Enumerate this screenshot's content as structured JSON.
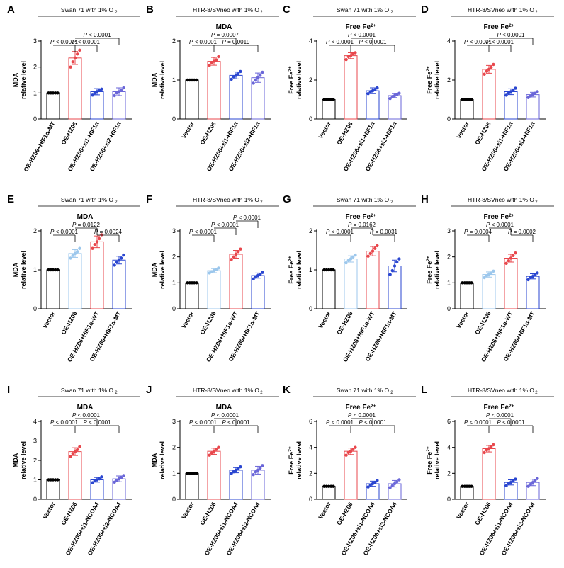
{
  "figure": {
    "panels_label": "12-panel bar chart figure"
  },
  "chart_data": [
    {
      "panel": "A",
      "type": "bar",
      "header": "Swan 71 with 1% O",
      "header_sub": "2",
      "title": "",
      "title_sup": "",
      "ylabel_1": "MDA",
      "ylabel_2": "relative level",
      "ylim": [
        0,
        3
      ],
      "yticks": [
        0,
        1,
        2,
        3
      ],
      "categories": [
        "OE-HZ06+HIF1α-MT",
        "OE-HZ06",
        "OE-HZ06+si1-HIF1α",
        "OE-HZ06+si2-HIF1α"
      ],
      "colors": [
        "#000000",
        "#e8474c",
        "#2a46d0",
        "#6a66d8"
      ],
      "values": [
        1.0,
        2.35,
        1.05,
        1.05
      ],
      "errors": [
        0.0,
        0.25,
        0.12,
        0.15
      ],
      "points": [
        [
          1,
          1,
          1,
          1,
          1
        ],
        [
          2.0,
          2.2,
          2.35,
          2.5,
          2.65
        ],
        [
          0.92,
          1.0,
          1.05,
          1.1,
          1.15
        ],
        [
          0.9,
          1.0,
          1.05,
          1.1,
          1.2
        ]
      ],
      "comparisons": [
        {
          "from": 0,
          "to": 1,
          "label": "P < 0.0001",
          "level": 0
        },
        {
          "from": 1,
          "to": 2,
          "label": "P < 0.0001",
          "level": 0
        },
        {
          "from": 1,
          "to": 3,
          "label": "P < 0.0001",
          "level": 1
        }
      ]
    },
    {
      "panel": "B",
      "type": "bar",
      "header": "HTR-8/SVneo with 1% O",
      "header_sub": "2",
      "title": "MDA",
      "title_sup": "",
      "ylabel_1": "MDA",
      "ylabel_2": "relative level",
      "ylim": [
        0,
        2
      ],
      "yticks": [
        0,
        1,
        2
      ],
      "categories": [
        "Vector",
        "OE-HZ06",
        "OE-HZ06+si1-HIF1α",
        "OE-HZ06+si2-HIF1α"
      ],
      "colors": [
        "#000000",
        "#e8474c",
        "#2a46d0",
        "#6a66d8"
      ],
      "values": [
        1.0,
        1.48,
        1.12,
        1.06
      ],
      "errors": [
        0.0,
        0.1,
        0.09,
        0.12
      ],
      "points": [
        [
          1,
          1,
          1,
          1,
          1
        ],
        [
          1.38,
          1.45,
          1.48,
          1.52,
          1.6
        ],
        [
          1.02,
          1.08,
          1.12,
          1.16,
          1.22
        ],
        [
          0.92,
          1.0,
          1.06,
          1.12,
          1.2
        ]
      ],
      "comparisons": [
        {
          "from": 0,
          "to": 1,
          "label": "P < 0.0001",
          "level": 0
        },
        {
          "from": 1,
          "to": 3,
          "label": "P = 0.0019",
          "level": 0
        },
        {
          "from": 1,
          "to": 2,
          "label": "P = 0.0007",
          "level": 1
        }
      ]
    },
    {
      "panel": "C",
      "type": "bar",
      "header": "Swan 71 with 1% O",
      "header_sub": "2",
      "title": "Free Fe",
      "title_sup": "2+",
      "ylabel_1": "Free Fe",
      "ylabel_1_sup": "2+",
      "ylabel_2": "relative level",
      "ylim": [
        0,
        4
      ],
      "yticks": [
        0,
        2,
        4
      ],
      "categories": [
        "Vector",
        "OE-HZ06",
        "OE-HZ06+si1-HIF1α",
        "OE-HZ06+si2-HIF1α"
      ],
      "colors": [
        "#000000",
        "#e8474c",
        "#2a46d0",
        "#6a66d8"
      ],
      "values": [
        1.0,
        3.25,
        1.45,
        1.2
      ],
      "errors": [
        0.0,
        0.15,
        0.15,
        0.1
      ],
      "points": [
        [
          1,
          1,
          1,
          1,
          1
        ],
        [
          3.05,
          3.2,
          3.25,
          3.35,
          3.4
        ],
        [
          1.3,
          1.4,
          1.45,
          1.5,
          1.6
        ],
        [
          1.05,
          1.15,
          1.2,
          1.25,
          1.32
        ]
      ],
      "comparisons": [
        {
          "from": 0,
          "to": 1,
          "label": "P < 0.0001",
          "level": 0
        },
        {
          "from": 1,
          "to": 3,
          "label": "P < 0.0001",
          "level": 0
        },
        {
          "from": 1,
          "to": 2,
          "label": "P < 0.0001",
          "level": 1
        }
      ]
    },
    {
      "panel": "D",
      "type": "bar",
      "header": "HTR-8/SVneo with 1% O",
      "header_sub": "2",
      "title": "Free Fe",
      "title_sup": "2+",
      "ylabel_1": "Free Fe",
      "ylabel_1_sup": "2+",
      "ylabel_2": "relative level",
      "ylim": [
        0,
        4
      ],
      "yticks": [
        0,
        2,
        4
      ],
      "categories": [
        "Vector",
        "OE-HZ06",
        "OE-HZ06+si1-HIF1α",
        "OE-HZ06+si2-HIF1α"
      ],
      "colors": [
        "#000000",
        "#e8474c",
        "#2a46d0",
        "#6a66d8"
      ],
      "values": [
        1.0,
        2.55,
        1.4,
        1.25
      ],
      "errors": [
        0.0,
        0.2,
        0.15,
        0.12
      ],
      "points": [
        [
          1,
          1,
          1,
          1,
          1
        ],
        [
          2.3,
          2.45,
          2.55,
          2.65,
          2.8
        ],
        [
          1.22,
          1.32,
          1.4,
          1.48,
          1.58
        ],
        [
          1.1,
          1.18,
          1.25,
          1.32,
          1.4
        ]
      ],
      "comparisons": [
        {
          "from": 0,
          "to": 1,
          "label": "P < 0.0001",
          "level": 0
        },
        {
          "from": 1,
          "to": 2,
          "label": "P < 0.0001",
          "level": 0
        },
        {
          "from": 1,
          "to": 3,
          "label": "P < 0.0001",
          "level": 1
        }
      ]
    },
    {
      "panel": "E",
      "type": "bar",
      "header": "Swan 71 with 1% O",
      "header_sub": "2",
      "title": "MDA",
      "title_sup": "",
      "ylabel_1": "MDA",
      "ylabel_2": "relative level",
      "ylim": [
        0,
        2
      ],
      "yticks": [
        0,
        1,
        2
      ],
      "categories": [
        "Vector",
        "OE-HZ06",
        "OE-HZ06+HIF1α-WT",
        "OE-HZ06+HIF1α-MT"
      ],
      "colors": [
        "#000000",
        "#9cc7ec",
        "#e8474c",
        "#2a46d0"
      ],
      "values": [
        1.0,
        1.42,
        1.72,
        1.25
      ],
      "errors": [
        0.0,
        0.1,
        0.15,
        0.1
      ],
      "points": [
        [
          1,
          1,
          1,
          1,
          1
        ],
        [
          1.3,
          1.37,
          1.42,
          1.47,
          1.55
        ],
        [
          1.55,
          1.65,
          1.72,
          1.8,
          1.9
        ],
        [
          1.12,
          1.2,
          1.25,
          1.3,
          1.38
        ]
      ],
      "comparisons": [
        {
          "from": 0,
          "to": 1,
          "label": "P < 0.0001",
          "level": 0
        },
        {
          "from": 2,
          "to": 3,
          "label": "P = 0.0024",
          "level": 0
        },
        {
          "from": 1,
          "to": 2,
          "label": "P = 0.0122",
          "level": 1
        }
      ]
    },
    {
      "panel": "F",
      "type": "bar",
      "header": "HTR-8/SVneo with 1% O",
      "header_sub": "2",
      "title": "",
      "title_sup": "",
      "ylabel_1": "MDA",
      "ylabel_2": "relative level",
      "ylim": [
        0,
        3
      ],
      "yticks": [
        0,
        1,
        2,
        3
      ],
      "categories": [
        "Vector",
        "OE-HZ06",
        "OE-HZ06+HIF1α-WT",
        "OE-HZ06+HIF1α-MT"
      ],
      "colors": [
        "#000000",
        "#9cc7ec",
        "#e8474c",
        "#2a46d0"
      ],
      "values": [
        1.0,
        1.47,
        2.1,
        1.28
      ],
      "errors": [
        0.0,
        0.08,
        0.15,
        0.1
      ],
      "points": [
        [
          1,
          1,
          1,
          1,
          1
        ],
        [
          1.38,
          1.43,
          1.47,
          1.52,
          1.57
        ],
        [
          1.9,
          2.0,
          2.1,
          2.2,
          2.3
        ],
        [
          1.15,
          1.22,
          1.28,
          1.33,
          1.4
        ]
      ],
      "comparisons": [
        {
          "from": 0,
          "to": 1,
          "label": "P < 0.0001",
          "level": 0
        },
        {
          "from": 1,
          "to": 2,
          "label": "P < 0.0001",
          "level": 1
        },
        {
          "from": 2,
          "to": 3,
          "label": "P < 0.0001",
          "level": 2
        }
      ]
    },
    {
      "panel": "G",
      "type": "bar",
      "header": "Swan 71 with 1% O",
      "header_sub": "2",
      "title": "Free Fe",
      "title_sup": "2+",
      "ylabel_1": "Free Fe",
      "ylabel_1_sup": "2+",
      "ylabel_2": "relative level",
      "ylim": [
        0,
        2
      ],
      "yticks": [
        0,
        1,
        2
      ],
      "categories": [
        "Vector",
        "OE-HZ06",
        "OE-HZ06+HIF1α-WT",
        "OE-HZ06+HIF1α-MT"
      ],
      "colors": [
        "#000000",
        "#9cc7ec",
        "#e8474c",
        "#2a46d0"
      ],
      "values": [
        1.0,
        1.28,
        1.48,
        1.1
      ],
      "errors": [
        0.0,
        0.08,
        0.12,
        0.15
      ],
      "points": [
        [
          1,
          1,
          1,
          1,
          1
        ],
        [
          1.18,
          1.24,
          1.28,
          1.33,
          1.38
        ],
        [
          1.35,
          1.42,
          1.48,
          1.55,
          1.62
        ],
        [
          0.88,
          0.98,
          1.1,
          1.2,
          1.28
        ]
      ],
      "comparisons": [
        {
          "from": 0,
          "to": 1,
          "label": "P < 0.0001",
          "level": 0
        },
        {
          "from": 2,
          "to": 3,
          "label": "P = 0.0031",
          "level": 0
        },
        {
          "from": 1,
          "to": 2,
          "label": "P = 0.0162",
          "level": 1
        }
      ]
    },
    {
      "panel": "H",
      "type": "bar",
      "header": "HTR-8/SVneo with 1% O",
      "header_sub": "2",
      "title": "Free Fe",
      "title_sup": "2+",
      "ylabel_1": "Free Fe",
      "ylabel_1_sup": "2+",
      "ylabel_2": "relative level",
      "ylim": [
        0,
        3
      ],
      "yticks": [
        0,
        1,
        2,
        3
      ],
      "categories": [
        "Vector",
        "OE-HZ06",
        "OE-HZ06+HIF1α-WT",
        "OE-HZ06+HIF1α-MT"
      ],
      "colors": [
        "#000000",
        "#9cc7ec",
        "#e8474c",
        "#2a46d0"
      ],
      "values": [
        1.0,
        1.32,
        1.95,
        1.25
      ],
      "errors": [
        0.0,
        0.1,
        0.15,
        0.1
      ],
      "points": [
        [
          1,
          1,
          1,
          1,
          1
        ],
        [
          1.2,
          1.27,
          1.32,
          1.38,
          1.45
        ],
        [
          1.75,
          1.85,
          1.95,
          2.05,
          2.15
        ],
        [
          1.12,
          1.2,
          1.25,
          1.3,
          1.38
        ]
      ],
      "comparisons": [
        {
          "from": 0,
          "to": 1,
          "label": "P = 0.0004",
          "level": 0
        },
        {
          "from": 2,
          "to": 3,
          "label": "P = 0.0002",
          "level": 0
        },
        {
          "from": 1,
          "to": 2,
          "label": "P < 0.0001",
          "level": 1
        }
      ]
    },
    {
      "panel": "I",
      "type": "bar",
      "header": "Swan 71 with 1% O",
      "header_sub": "2",
      "title": "MDA",
      "title_sup": "",
      "ylabel_1": "MDA",
      "ylabel_2": "relative level",
      "ylim": [
        0,
        4
      ],
      "yticks": [
        0,
        1,
        2,
        3,
        4
      ],
      "categories": [
        "Vector",
        "OE-HZ06",
        "OE-HZ06+si1-NCOA4",
        "OE-HZ06+si2-NCOA4"
      ],
      "colors": [
        "#000000",
        "#e8474c",
        "#2a46d0",
        "#6a66d8"
      ],
      "values": [
        1.0,
        2.45,
        1.0,
        1.05
      ],
      "errors": [
        0.0,
        0.2,
        0.12,
        0.15
      ],
      "points": [
        [
          1,
          1,
          1,
          1,
          1
        ],
        [
          2.2,
          2.35,
          2.45,
          2.55,
          2.7
        ],
        [
          0.85,
          0.95,
          1.0,
          1.05,
          1.15
        ],
        [
          0.88,
          0.98,
          1.05,
          1.12,
          1.22
        ]
      ],
      "comparisons": [
        {
          "from": 0,
          "to": 1,
          "label": "P < 0.0001",
          "level": 0
        },
        {
          "from": 1,
          "to": 3,
          "label": "P < 0.0001",
          "level": 0
        },
        {
          "from": 1,
          "to": 2,
          "label": "P < 0.0001",
          "level": 1
        }
      ]
    },
    {
      "panel": "J",
      "type": "bar",
      "header": "HTR-8/SVneo with 1% O",
      "header_sub": "2",
      "title": "MDA",
      "title_sup": "",
      "ylabel_1": "MDA",
      "ylabel_2": "relative level",
      "ylim": [
        0,
        3
      ],
      "yticks": [
        0,
        1,
        2,
        3
      ],
      "categories": [
        "Vector",
        "OE-HZ06",
        "OE-HZ06+si1-NCOA4",
        "OE-HZ06+si2-NCOA4"
      ],
      "colors": [
        "#000000",
        "#e8474c",
        "#2a46d0",
        "#6a66d8"
      ],
      "values": [
        1.0,
        1.85,
        1.12,
        1.12
      ],
      "errors": [
        0.0,
        0.12,
        0.1,
        0.15
      ],
      "points": [
        [
          1,
          1,
          1,
          1,
          1
        ],
        [
          1.7,
          1.78,
          1.85,
          1.92,
          2.0
        ],
        [
          1.0,
          1.06,
          1.12,
          1.18,
          1.25
        ],
        [
          0.95,
          1.05,
          1.12,
          1.2,
          1.3
        ]
      ],
      "comparisons": [
        {
          "from": 0,
          "to": 1,
          "label": "P < 0.0001",
          "level": 0
        },
        {
          "from": 1,
          "to": 3,
          "label": "P < 0.0001",
          "level": 0
        },
        {
          "from": 1,
          "to": 2,
          "label": "P < 0.0001",
          "level": 1
        }
      ]
    },
    {
      "panel": "K",
      "type": "bar",
      "header": "Swan 71 with 1% O",
      "header_sub": "2",
      "title": "Free Fe",
      "title_sup": "2+",
      "ylabel_1": "Free Fe",
      "ylabel_1_sup": "2+",
      "ylabel_2": "relative level",
      "ylim": [
        0,
        6
      ],
      "yticks": [
        0,
        2,
        4,
        6
      ],
      "categories": [
        "Vector",
        "OE-HZ06",
        "OE-HZ06+si1-NCOA4",
        "OE-HZ06+si2-NCOA4"
      ],
      "colors": [
        "#000000",
        "#e8474c",
        "#2a46d0",
        "#6a66d8"
      ],
      "values": [
        1.0,
        3.7,
        1.2,
        1.2
      ],
      "errors": [
        0.0,
        0.25,
        0.2,
        0.25
      ],
      "points": [
        [
          1,
          1,
          1,
          1,
          1
        ],
        [
          3.4,
          3.6,
          3.7,
          3.85,
          4.0
        ],
        [
          0.95,
          1.1,
          1.2,
          1.3,
          1.45
        ],
        [
          0.9,
          1.05,
          1.2,
          1.35,
          1.5
        ]
      ],
      "comparisons": [
        {
          "from": 0,
          "to": 1,
          "label": "P < 0.0001",
          "level": 0
        },
        {
          "from": 1,
          "to": 3,
          "label": "P < 0.0001",
          "level": 0
        },
        {
          "from": 1,
          "to": 2,
          "label": "P < 0.0001",
          "level": 1
        }
      ]
    },
    {
      "panel": "L",
      "type": "bar",
      "header": "HTR-8/SVneo with 1% O",
      "header_sub": "2",
      "title": "Free Fe",
      "title_sup": "2+",
      "ylabel_1": "Free Fe",
      "ylabel_1_sup": "2+",
      "ylabel_2": "relative level",
      "ylim": [
        0,
        6
      ],
      "yticks": [
        0,
        2,
        4,
        6
      ],
      "categories": [
        "Vector",
        "OE-HZ06",
        "OE-HZ06+si1-NCOA4",
        "OE-HZ06+si2-NCOA4"
      ],
      "colors": [
        "#000000",
        "#e8474c",
        "#2a46d0",
        "#6a66d8"
      ],
      "values": [
        1.0,
        3.9,
        1.3,
        1.3
      ],
      "errors": [
        0.0,
        0.25,
        0.2,
        0.25
      ],
      "points": [
        [
          1,
          1,
          1,
          1,
          1
        ],
        [
          3.6,
          3.8,
          3.9,
          4.05,
          4.2
        ],
        [
          1.05,
          1.2,
          1.3,
          1.4,
          1.55
        ],
        [
          1.0,
          1.15,
          1.3,
          1.45,
          1.6
        ]
      ],
      "comparisons": [
        {
          "from": 0,
          "to": 1,
          "label": "P < 0.0001",
          "level": 0
        },
        {
          "from": 1,
          "to": 3,
          "label": "P < 0.0001",
          "level": 0
        },
        {
          "from": 1,
          "to": 2,
          "label": "P < 0.0001",
          "level": 1
        }
      ]
    }
  ]
}
